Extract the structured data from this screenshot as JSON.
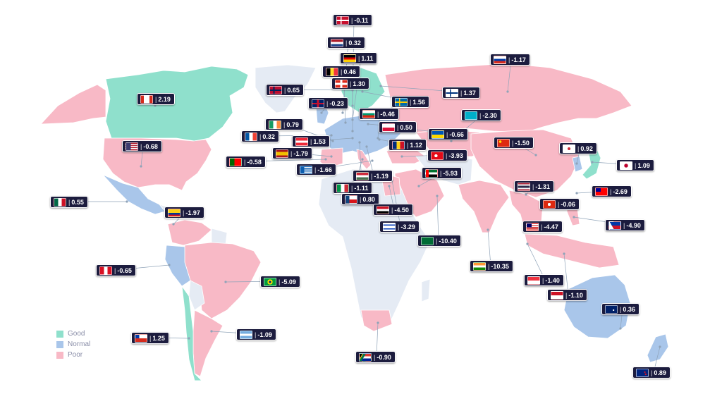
{
  "colors": {
    "good": "#8fe0cc",
    "normal": "#a9c6ea",
    "poor": "#f8b9c6",
    "no_data": "#e5ebf4",
    "badge_bg": "#1c1c3e",
    "leader": "#8fa3b8"
  },
  "legend": [
    {
      "label": "Good",
      "color": "#8fe0cc"
    },
    {
      "label": "Normal",
      "color": "#a9c6ea"
    },
    {
      "label": "Poor",
      "color": "#f8b9c6"
    }
  ],
  "markers": [
    {
      "country": "Denmark",
      "value": "-0.11",
      "flag": "linear-gradient(90deg,transparent 30%,#fff 30%,#fff 42%,transparent 42%),linear-gradient(#c8102e 40%,#fff 40%,#fff 60%,#c8102e 60%)"
    },
    {
      "country": "Netherlands",
      "value": "0.32",
      "flag": "linear-gradient(#ae1c28 33%,#fff 33%,#fff 66%,#21468b 66%)"
    },
    {
      "country": "Germany",
      "value": "1.11",
      "flag": "linear-gradient(#000 33%,#dd0000 33%,#dd0000 66%,#ffce00 66%)"
    },
    {
      "country": "Belgium",
      "value": "0.46",
      "flag": "linear-gradient(90deg,#000 33%,#fdda24 33%,#fdda24 66%,#ef3340 66%)"
    },
    {
      "country": "Switzerland",
      "value": "1.30",
      "flag": "linear-gradient(90deg,transparent 42%,#fff 42%,#fff 58%,transparent 58%),linear-gradient(#da291c 35%,#fff 35%,#fff 65%,#da291c 65%)"
    },
    {
      "country": "Norway",
      "value": "0.65",
      "flag": "linear-gradient(90deg,transparent 28%,#00205b 28%,#00205b 40%,transparent 40%),linear-gradient(#ba0c2f 38%,#00205b 38%,#00205b 62%,#ba0c2f 62%)"
    },
    {
      "country": "United Kingdom",
      "value": "-0.23",
      "flag": "linear-gradient(90deg,transparent 42%,#c8102e 42%,#c8102e 58%,transparent 58%),linear-gradient(#012169 40%,#c8102e 40%,#c8102e 60%,#012169 60%)"
    },
    {
      "country": "Sweden",
      "value": "1.56",
      "flag": "linear-gradient(90deg,transparent 30%,#fecc02 30%,#fecc02 42%,transparent 42%),linear-gradient(#006aa7 40%,#fecc02 40%,#fecc02 60%,#006aa7 60%)"
    },
    {
      "country": "Russia",
      "value": "-1.17",
      "flag": "linear-gradient(#fff 33%,#0039a6 33%,#0039a6 66%,#d52b1e 66%)"
    },
    {
      "country": "Finland",
      "value": "1.37",
      "flag": "linear-gradient(90deg,transparent 30%,#003580 30%,#003580 42%,transparent 42%),linear-gradient(#fff 40%,#003580 40%,#003580 60%,#fff 60%)"
    },
    {
      "country": "Canada",
      "value": "2.19",
      "flag": "linear-gradient(90deg,#d52b1e 25%,#fff 25%,#fff 75%,#d52b1e 75%)"
    },
    {
      "country": "Bulgaria",
      "value": "-0.46",
      "flag": "linear-gradient(#fff 33%,#00966e 33%,#00966e 66%,#d62612 66%)"
    },
    {
      "country": "Kazakhstan",
      "value": "-2.30",
      "flag": "linear-gradient(#00afca,#00afca)"
    },
    {
      "country": "Ireland",
      "value": "0.79",
      "flag": "linear-gradient(90deg,#169b62 33%,#fff 33%,#fff 66%,#ff883e 66%)"
    },
    {
      "country": "Poland",
      "value": "0.50",
      "flag": "linear-gradient(#fff 50%,#dc143c 50%)"
    },
    {
      "country": "France",
      "value": "0.32",
      "flag": "linear-gradient(90deg,#0055a4 33%,#fff 33%,#fff 66%,#ef4135 66%)"
    },
    {
      "country": "Ukraine",
      "value": "-0.66",
      "flag": "linear-gradient(#0057b7 50%,#ffd700 50%)"
    },
    {
      "country": "Austria",
      "value": "1.53",
      "flag": "linear-gradient(#ed2939 33%,#fff 33%,#fff 66%,#ed2939 66%)"
    },
    {
      "country": "Romania",
      "value": "1.12",
      "flag": "linear-gradient(90deg,#002b7f 33%,#fcd116 33%,#fcd116 66%,#ce1126 66%)"
    },
    {
      "country": "United States",
      "value": "-0.68",
      "flag": "linear-gradient(90deg,#3c3b6e 40%,transparent 40%),repeating-linear-gradient(#b22234 0 1.4px,#fff 1.4px 2.8px)"
    },
    {
      "country": "China",
      "value": "-1.50",
      "flag": "radial-gradient(circle at 22% 30%,#ffde00 12%,transparent 13%),linear-gradient(#de2910,#de2910)"
    },
    {
      "country": "Spain",
      "value": "-1.79",
      "flag": "linear-gradient(#aa151b 25%,#f1bf00 25%,#f1bf00 75%,#aa151b 75%)"
    },
    {
      "country": "Turkey",
      "value": "-3.93",
      "flag": "radial-gradient(circle at 40% 50%,#fff 20%,transparent 21%),linear-gradient(#e30a17,#e30a17)"
    },
    {
      "country": "South Korea",
      "value": "0.92",
      "flag": "radial-gradient(circle at 50% 50%,#cd2e3a 22%,transparent 23%),linear-gradient(#fff,#fff)"
    },
    {
      "country": "Portugal",
      "value": "-0.58",
      "flag": "linear-gradient(90deg,#006600 40%,#ff0000 40%)"
    },
    {
      "country": "Greece",
      "value": "-1.66",
      "flag": "linear-gradient(90deg,#0d5eaf 35%,transparent 35%),repeating-linear-gradient(#0d5eaf 0 1.1px,#fff 1.1px 2.2px)"
    },
    {
      "country": "Japan",
      "value": "1.09",
      "flag": "radial-gradient(circle at 50% 50%,#bc002d 28%,transparent 30%),linear-gradient(#fff,#fff)"
    },
    {
      "country": "United Arab Emirates",
      "value": "-5.93",
      "flag": "linear-gradient(90deg,#ff0000 25%,transparent 25%),linear-gradient(#00732f 33%,#fff 33%,#fff 66%,#000 66%)"
    },
    {
      "country": "Hungary",
      "value": "-1.19",
      "flag": "linear-gradient(#ce2939 33%,#fff 33%,#fff 66%,#477050 66%)"
    },
    {
      "country": "Thailand",
      "value": "-1.31",
      "flag": "linear-gradient(#a51931 17%,#f4f5f8 17%,#f4f5f8 33%,#2d2a4a 33%,#2d2a4a 67%,#f4f5f8 67%,#f4f5f8 83%,#a51931 83%)"
    },
    {
      "country": "Taiwan",
      "value": "-2.69",
      "flag": "linear-gradient(90deg,#000095 45%,transparent 45%) top/100% 50% no-repeat,linear-gradient(#fe0000,#fe0000)"
    },
    {
      "country": "Italy",
      "value": "-1.11",
      "flag": "linear-gradient(90deg,#009246 33%,#fff 33%,#fff 66%,#ce2b37 66%)"
    },
    {
      "country": "Mexico",
      "value": "0.55",
      "flag": "linear-gradient(90deg,#006847 33%,#fff 33%,#fff 66%,#ce1126 66%)"
    },
    {
      "country": "Czech Republic",
      "value": "0.80",
      "flag": "linear-gradient(90deg,#11457e 35%,transparent 35%),linear-gradient(#fff 50%,#d7141a 50%)"
    },
    {
      "country": "Colombia",
      "value": "-1.97",
      "flag": "linear-gradient(#fcd116 50%,#003893 50%,#003893 75%,#ce1126 75%)"
    },
    {
      "country": "Hong Kong",
      "value": "-0.06",
      "flag": "radial-gradient(circle at 50% 50%,#fff 22%,transparent 24%),linear-gradient(#de2910,#de2910)"
    },
    {
      "country": "Egypt",
      "value": "-4.50",
      "flag": "linear-gradient(#ce1126 33%,#fff 33%,#fff 66%,#000 66%)"
    },
    {
      "country": "Malaysia",
      "value": "-4.47",
      "flag": "linear-gradient(90deg,#010066 45%,transparent 45%) top/100% 55% no-repeat,repeating-linear-gradient(#cc0001 0 1.2px,#fff 1.2px 2.4px)"
    },
    {
      "country": "Philippines",
      "value": "-4.90",
      "flag": "linear-gradient(60deg,#fff 30%,transparent 30%),linear-gradient(#0038a8 50%,#ce1126 50%)"
    },
    {
      "country": "Israel",
      "value": "-3.29",
      "flag": "linear-gradient(#fff 15%,#0038b8 15%,#0038b8 28%,#fff 28%,#fff 72%,#0038b8 72%,#0038b8 85%,#fff 85%)"
    },
    {
      "country": "Saudi Arabia",
      "value": "-10.40",
      "flag": "linear-gradient(#006c35,#006c35)"
    },
    {
      "country": "India",
      "value": "-10.35",
      "flag": "linear-gradient(#ff9933 33%,#fff 33%,#fff 66%,#138808 66%)"
    },
    {
      "country": "Peru",
      "value": "-0.65",
      "flag": "linear-gradient(90deg,#d91023 33%,#fff 33%,#fff 66%,#d91023 66%)"
    },
    {
      "country": "Brazil",
      "value": "-5.09",
      "flag": "radial-gradient(circle at 50% 50%,#002776 18%,#ffdf00 19%,#ffdf00 38%,#009c3b 40%)"
    },
    {
      "country": "Singapore",
      "value": "-1.40",
      "flag": "linear-gradient(#ef3340 50%,#fff 50%)"
    },
    {
      "country": "Indonesia",
      "value": "-1.10",
      "flag": "linear-gradient(#ce1126 50%,#fff 50%)"
    },
    {
      "country": "Australia",
      "value": "0.36",
      "flag": "linear-gradient(#012169 0,#012169 0) top left/45% 50% no-repeat,radial-gradient(circle at 70% 60%,#fff 8%,transparent 9%),linear-gradient(#012169,#012169)"
    },
    {
      "country": "Chile",
      "value": "1.25",
      "flag": "linear-gradient(90deg,#0039a6 35%,transparent 35%) top/100% 50% no-repeat,linear-gradient(#fff 50%,#d52b1e 50%)"
    },
    {
      "country": "Argentina",
      "value": "-1.09",
      "flag": "linear-gradient(#74acdf 33%,#fff 33%,#fff 66%,#74acdf 66%)"
    },
    {
      "country": "South Africa",
      "value": "-0.90",
      "flag": "linear-gradient(120deg,#000 18%,#ffb612 18%,#ffb612 24%,#007749 24%,#007749 40%,transparent 40%),linear-gradient(#de3831 33%,#fff 33%,#fff 66%,#002395 66%)"
    },
    {
      "country": "New Zealand",
      "value": "0.89",
      "flag": "radial-gradient(circle at 72% 40%,#cc142b 8%,transparent 9%),radial-gradient(circle at 80% 70%,#cc142b 8%,transparent 9%),linear-gradient(#00247d,#00247d)"
    }
  ]
}
